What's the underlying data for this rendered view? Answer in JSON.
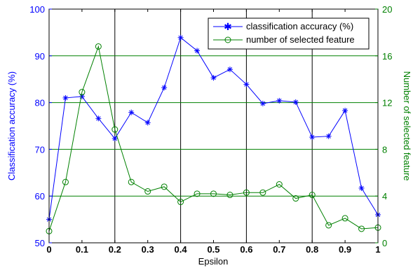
{
  "chart_data": {
    "type": "line",
    "xlabel": "Epsilon",
    "ylabel_left": "Classification accuracy (%)",
    "ylabel_right": "Number of selected feature",
    "xlim": [
      0,
      1
    ],
    "ylim_left": [
      50,
      100
    ],
    "ylim_right": [
      0,
      20
    ],
    "x_ticks": [
      "0",
      "0.1",
      "0.2",
      "0.3",
      "0.4",
      "0.5",
      "0.6",
      "0.7",
      "0.8",
      "0.9",
      "1"
    ],
    "y_ticks_left": [
      "50",
      "60",
      "70",
      "80",
      "90",
      "100"
    ],
    "y_ticks_right": [
      "0",
      "4",
      "8",
      "12",
      "16",
      "20"
    ],
    "grid": {
      "vertical_at": [
        0.2,
        0.4,
        0.6,
        0.8
      ],
      "horizontal_right_axis_at": [
        4,
        8,
        12,
        16
      ]
    },
    "legend_position": "top-right",
    "x": [
      0,
      0.05,
      0.1,
      0.15,
      0.2,
      0.25,
      0.3,
      0.35,
      0.4,
      0.45,
      0.5,
      0.55,
      0.6,
      0.65,
      0.7,
      0.75,
      0.8,
      0.85,
      0.9,
      0.95,
      1.0
    ],
    "series": [
      {
        "name": "classification accuracy (%)",
        "axis": "left",
        "color": "#0000ff",
        "marker": "star",
        "values": [
          55.0,
          81.0,
          81.3,
          76.6,
          72.3,
          77.9,
          75.7,
          83.2,
          93.9,
          91.1,
          85.3,
          87.1,
          83.9,
          79.8,
          80.4,
          80.1,
          72.6,
          72.8,
          78.3,
          61.7,
          56.0
        ]
      },
      {
        "name": "number of selected feature",
        "axis": "right",
        "color": "#008000",
        "marker": "circle",
        "values": [
          1.0,
          5.2,
          12.9,
          16.8,
          9.7,
          5.2,
          4.4,
          4.8,
          3.5,
          4.2,
          4.2,
          4.1,
          4.3,
          4.3,
          5.0,
          3.8,
          4.1,
          1.5,
          2.1,
          1.2,
          1.3
        ]
      }
    ]
  },
  "colors": {
    "accuracy": "#0000ff",
    "features": "#008000",
    "grid_vertical": "#000000",
    "grid_horizontal": "#008000"
  }
}
